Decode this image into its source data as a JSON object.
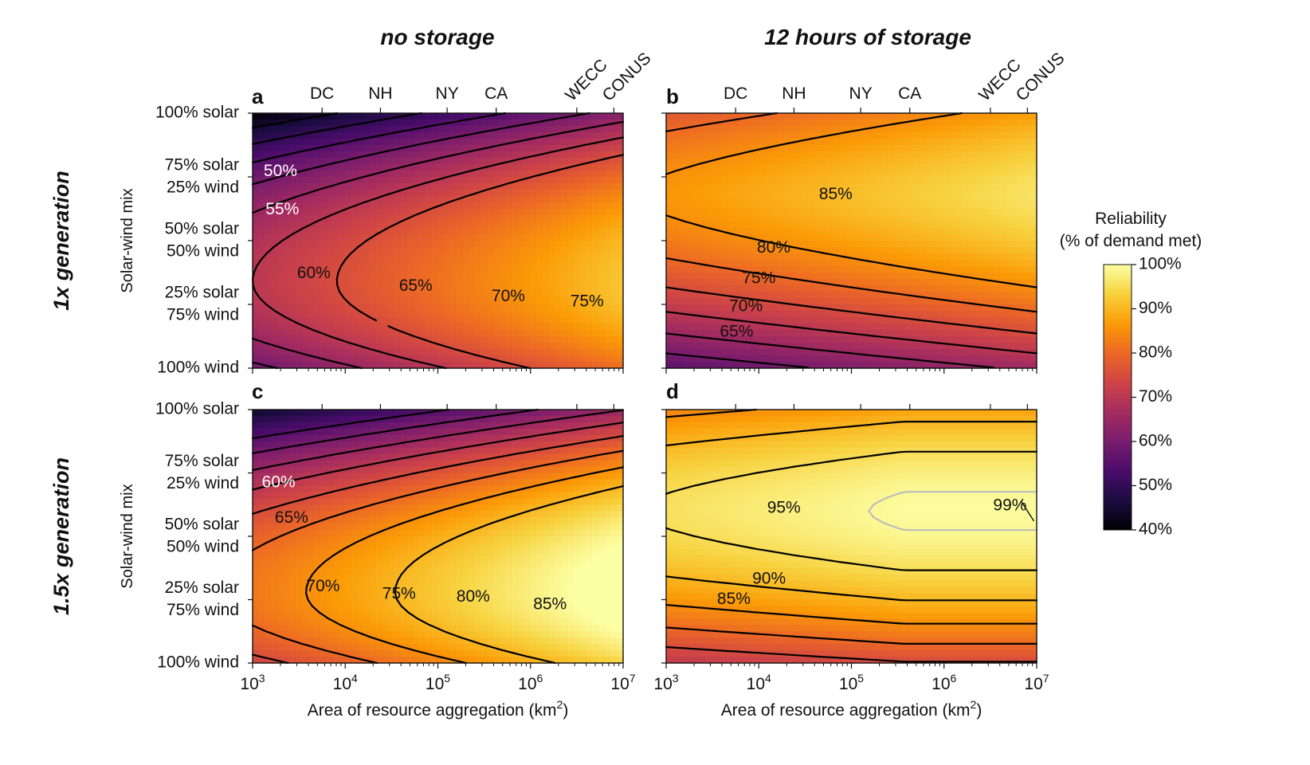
{
  "figure": {
    "col_titles": [
      "no storage",
      "12 hours of storage"
    ],
    "row_titles": [
      "1x generation",
      "1.5x generation"
    ],
    "panel_letters": [
      "a",
      "b",
      "c",
      "d"
    ],
    "y_axis_label": "Solar-wind mix",
    "x_axis_label": "Area of resource aggregation (km",
    "x_axis_label_sup": "2",
    "x_axis_label_close": ")",
    "x_ticks": [
      {
        "base": "10",
        "exp": "3"
      },
      {
        "base": "10",
        "exp": "4"
      },
      {
        "base": "10",
        "exp": "5"
      },
      {
        "base": "10",
        "exp": "6"
      },
      {
        "base": "10",
        "exp": "7"
      }
    ],
    "y_ticks": [
      {
        "value": 100,
        "lines": [
          "100% solar"
        ]
      },
      {
        "value": 75,
        "lines": [
          "75% solar",
          "25% wind"
        ]
      },
      {
        "value": 50,
        "lines": [
          "50% solar",
          "50% wind"
        ]
      },
      {
        "value": 25,
        "lines": [
          "25% solar",
          "75% wind"
        ]
      },
      {
        "value": 0,
        "lines": [
          "100% wind"
        ]
      }
    ],
    "top_ticks": [
      {
        "label": "DC",
        "log_area": 3.75,
        "rotated": false
      },
      {
        "label": "NH",
        "log_area": 4.38,
        "rotated": false
      },
      {
        "label": "NY",
        "log_area": 5.1,
        "rotated": false
      },
      {
        "label": "CA",
        "log_area": 5.63,
        "rotated": false
      },
      {
        "label": "WECC",
        "log_area": 6.5,
        "rotated": true
      },
      {
        "label": "CONUS",
        "log_area": 6.9,
        "rotated": true
      }
    ],
    "colorbar": {
      "title_lines": [
        "Reliability",
        "(% of demand met)"
      ],
      "min": 40,
      "max": 100,
      "ticks": [
        "100%",
        "90%",
        "80%",
        "70%",
        "60%",
        "50%",
        "40%"
      ],
      "stops": [
        "#fcffa4",
        "#f7d13d",
        "#fb9b06",
        "#ed6925",
        "#cf4446",
        "#a52c60",
        "#781c6d",
        "#4a0c6b",
        "#1b0c41",
        "#000004"
      ]
    }
  },
  "chart_data": [
    {
      "type": "heatmap",
      "panel": "a",
      "x": "log10 area (km2)",
      "xlim": [
        3,
        7
      ],
      "ylim": [
        0,
        100
      ],
      "contour_levels": [
        45,
        50,
        55,
        60,
        65,
        70,
        75
      ],
      "labels": [
        {
          "text": "50%",
          "x": 3.12,
          "y": 77
        },
        {
          "text": "55%",
          "x": 3.14,
          "y": 62
        },
        {
          "text": "60%",
          "x": 3.48,
          "y": 37
        },
        {
          "text": "65%",
          "x": 4.58,
          "y": 32
        },
        {
          "text": "70%",
          "x": 5.58,
          "y": 28
        },
        {
          "text": "75%",
          "x": 6.43,
          "y": 26
        }
      ]
    },
    {
      "type": "heatmap",
      "panel": "b",
      "x": "log10 area (km2)",
      "xlim": [
        3,
        7
      ],
      "ylim": [
        0,
        100
      ],
      "contour_levels": [
        60,
        65,
        70,
        75,
        80,
        85
      ],
      "labels": [
        {
          "text": "85%",
          "x": 4.65,
          "y": 68
        },
        {
          "text": "80%",
          "x": 3.98,
          "y": 47
        },
        {
          "text": "75%",
          "x": 3.82,
          "y": 35
        },
        {
          "text": "70%",
          "x": 3.68,
          "y": 24
        },
        {
          "text": "65%",
          "x": 3.58,
          "y": 14
        }
      ]
    },
    {
      "type": "heatmap",
      "panel": "c",
      "x": "log10 area (km2)",
      "xlim": [
        3,
        7
      ],
      "ylim": [
        0,
        100
      ],
      "contour_levels": [
        55,
        60,
        65,
        70,
        75,
        80,
        85,
        90
      ],
      "labels": [
        {
          "text": "60%",
          "x": 3.1,
          "y": 71
        },
        {
          "text": "65%",
          "x": 3.24,
          "y": 57
        },
        {
          "text": "70%",
          "x": 3.58,
          "y": 30
        },
        {
          "text": "75%",
          "x": 4.4,
          "y": 27
        },
        {
          "text": "80%",
          "x": 5.2,
          "y": 26
        },
        {
          "text": "85%",
          "x": 6.03,
          "y": 23
        }
      ]
    },
    {
      "type": "heatmap",
      "panel": "d",
      "x": "log10 area (km2)",
      "xlim": [
        3,
        7
      ],
      "ylim": [
        0,
        100
      ],
      "contour_levels": [
        75,
        80,
        85,
        90,
        95,
        99
      ],
      "labels": [
        {
          "text": "95%",
          "x": 4.09,
          "y": 61
        },
        {
          "text": "90%",
          "x": 3.93,
          "y": 33
        },
        {
          "text": "85%",
          "x": 3.55,
          "y": 25
        },
        {
          "text": "99%",
          "x": 6.53,
          "y": 62
        }
      ]
    }
  ]
}
